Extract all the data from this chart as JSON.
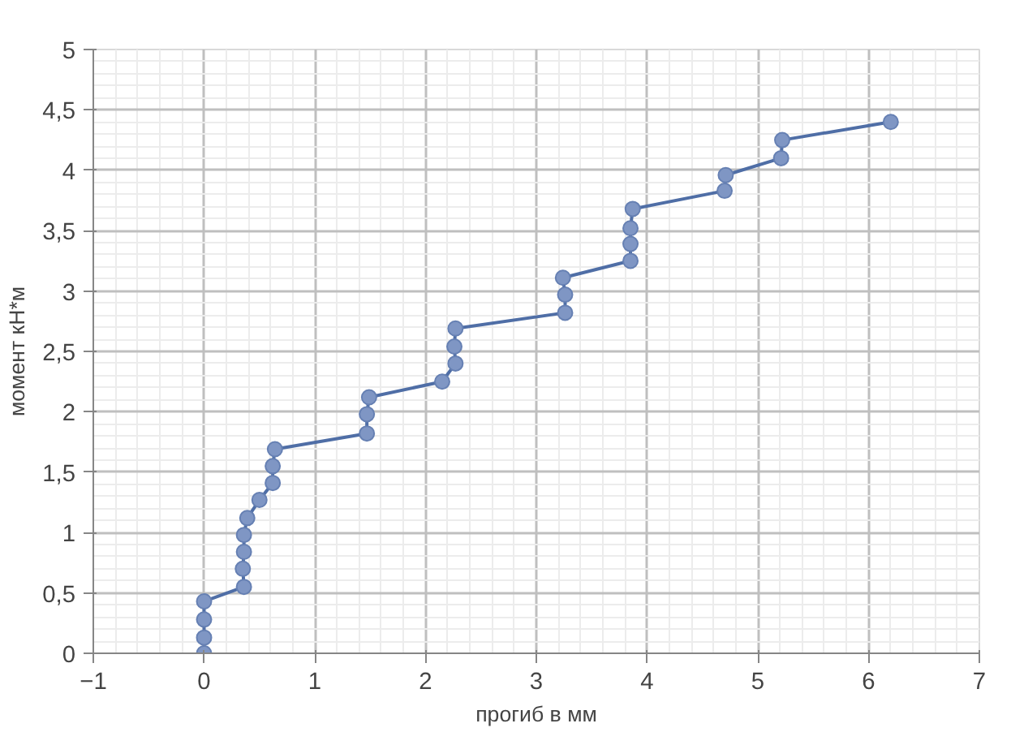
{
  "chart_data": {
    "type": "line",
    "xlabel": "прогиб в мм",
    "ylabel": "момент кН*м",
    "xlim": [
      -1,
      7
    ],
    "xticks": [
      -1,
      0,
      1,
      2,
      3,
      4,
      5,
      6,
      7
    ],
    "ylim": [
      0,
      5
    ],
    "yticks": [
      0,
      {
        "value": 0.5,
        "label": "0,5"
      },
      1,
      {
        "value": 1.5,
        "label": "1,5"
      },
      2,
      {
        "value": 2.5,
        "label": "2,5"
      },
      3,
      {
        "value": 3.5,
        "label": "3,5"
      },
      4,
      {
        "value": 4.5,
        "label": "4,5"
      },
      5
    ],
    "grid": true,
    "marker": "circle",
    "line_style": "solid",
    "series": [
      {
        "color": "#7f96c4",
        "x": [
          0,
          0,
          0,
          0,
          0.36,
          0.35,
          0.36,
          0.36,
          0.39,
          0.5,
          0.62,
          0.62,
          0.64,
          1.47,
          1.47,
          1.49,
          2.15,
          2.27,
          2.26,
          2.27,
          3.26,
          3.26,
          3.24,
          3.85,
          3.85,
          3.85,
          3.87,
          4.7,
          4.71,
          5.21,
          5.22,
          6.2
        ],
        "values": [
          0,
          0.13,
          0.28,
          0.43,
          0.55,
          0.7,
          0.84,
          0.98,
          1.12,
          1.27,
          1.41,
          1.55,
          1.69,
          1.82,
          1.98,
          2.12,
          2.25,
          2.4,
          2.54,
          2.69,
          2.82,
          2.97,
          3.11,
          3.25,
          3.39,
          3.52,
          3.68,
          3.83,
          3.96,
          4.1,
          4.25,
          4.4
        ]
      }
    ]
  }
}
